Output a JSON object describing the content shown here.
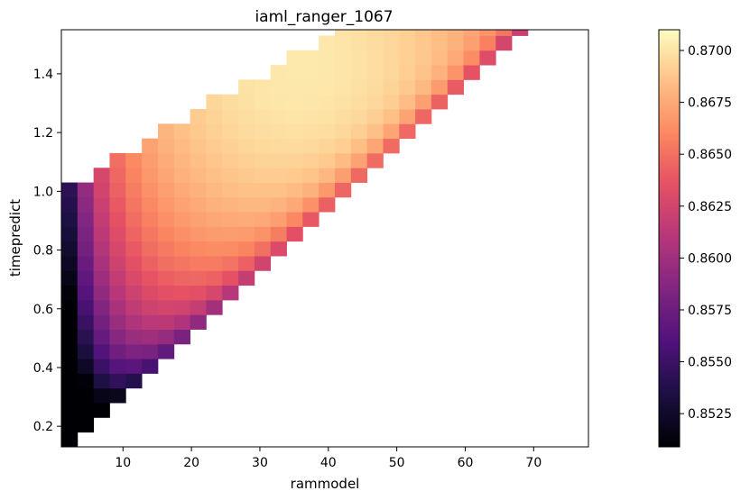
{
  "chart_data": {
    "type": "heatmap",
    "title": "iaml_ranger_1067",
    "xlabel": "rammodel",
    "ylabel": "timepredict",
    "xlim": [
      1,
      78
    ],
    "ylim": [
      0.13,
      1.55
    ],
    "xticks": [
      10,
      20,
      30,
      40,
      50,
      60,
      70
    ],
    "yticks": [
      0.2,
      0.4,
      0.6,
      0.8,
      1.0,
      1.2,
      1.4
    ],
    "colormap": "magma",
    "colorbar": {
      "vmin": 0.8509,
      "vmax": 0.871,
      "ticks": [
        0.8525,
        0.855,
        0.8575,
        0.86,
        0.8625,
        0.865,
        0.8675,
        0.87
      ]
    },
    "grid": {
      "x_start": 1,
      "x_step": 2.35,
      "y_start": 0.13,
      "y_step": 0.05,
      "nx": 33,
      "ny": 29
    },
    "region": "diagonal band: filled cells lie between a lower boundary (timepredict rising with rammodel from about 0.15 at rammodel 2 to 1.55 at rammodel 68) and an upper boundary (from about 1.0 at rammodel 1 to 1.55 at rammodel 41)",
    "value_pattern": "maximum about 0.870 near rammodel 30-40, timepredict 1.3-1.5; values fall toward about 0.853-0.857 along the left edge (rammodel 2-8) and about 0.863-0.866 along the lower-right edge"
  }
}
